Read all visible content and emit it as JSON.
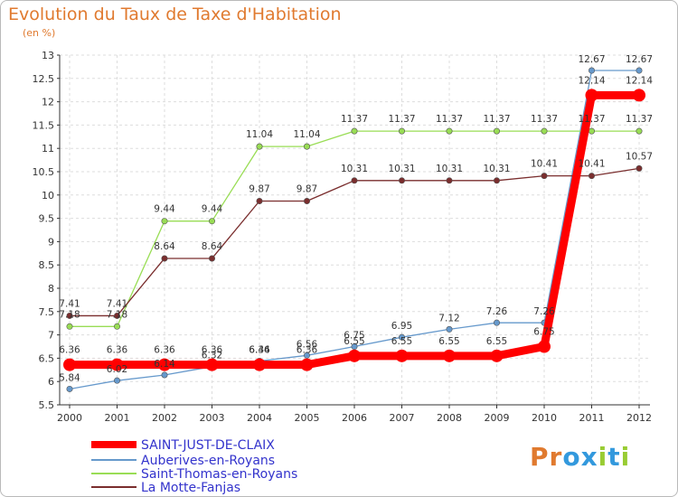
{
  "chart_data": {
    "type": "line",
    "title": "Evolution du Taux de Taxe d'Habitation",
    "subtitle": "(en %)",
    "xlabel": "",
    "ylabel": "",
    "x": [
      "2000",
      "2001",
      "2002",
      "2003",
      "2004",
      "2005",
      "2006",
      "2007",
      "2008",
      "2009",
      "2010",
      "2011",
      "2012"
    ],
    "ylim": [
      5.5,
      13
    ],
    "yticks": [
      "5.5",
      "6",
      "6.5",
      "7",
      "7.5",
      "8",
      "8.5",
      "9",
      "9.5",
      "10",
      "10.5",
      "11",
      "11.5",
      "12",
      "12.5",
      "13"
    ],
    "grid": true,
    "legend_position": "bottom-left",
    "series": [
      {
        "name": "SAINT-JUST-DE-CLAIX",
        "color": "#ff0000",
        "values": [
          6.36,
          6.36,
          6.36,
          6.36,
          6.36,
          6.36,
          6.55,
          6.55,
          6.55,
          6.55,
          6.75,
          12.14,
          12.14
        ],
        "labels": [
          "6.36",
          "6.36",
          "6.36",
          "6.36",
          "6.36",
          "6.36",
          "6.55",
          "6.55",
          "6.55",
          "6.55",
          "6.75",
          "12.14",
          "12.14"
        ]
      },
      {
        "name": "Auberives-en-Royans",
        "color": "#6699cc",
        "values": [
          5.84,
          6.02,
          6.14,
          6.32,
          6.44,
          6.56,
          6.75,
          6.95,
          7.12,
          7.26,
          7.26,
          12.67,
          12.67
        ],
        "labels": [
          "5.84",
          "6.02",
          "6.14",
          "6.32",
          "6.44",
          "6.56",
          "6.75",
          "6.95",
          "7.12",
          "7.26",
          "7.26",
          "12.67",
          "12.67"
        ]
      },
      {
        "name": "Saint-Thomas-en-Royans",
        "color": "#99dd55",
        "values": [
          7.18,
          7.18,
          9.44,
          9.44,
          11.04,
          11.04,
          11.37,
          11.37,
          11.37,
          11.37,
          11.37,
          11.37,
          11.37
        ],
        "labels": [
          "7.18",
          "7.18",
          "9.44",
          "9.44",
          "11.04",
          "11.04",
          "11.37",
          "11.37",
          "11.37",
          "11.37",
          "11.37",
          "11.37",
          "11.37"
        ]
      },
      {
        "name": "La Motte-Fanjas",
        "color": "#7a2e2e",
        "values": [
          7.41,
          7.41,
          8.64,
          8.64,
          9.87,
          9.87,
          10.31,
          10.31,
          10.31,
          10.31,
          10.41,
          10.41,
          10.57
        ],
        "labels": [
          "7.41",
          "7.41",
          "8.64",
          "8.64",
          "9.87",
          "9.87",
          "10.31",
          "10.31",
          "10.31",
          "10.31",
          "10.41",
          "10.41",
          "10.57"
        ]
      }
    ],
    "legend_text_color": "#3333cc"
  },
  "brand": {
    "letters": [
      "P",
      "r",
      "o",
      "x",
      "i",
      "t",
      "i"
    ],
    "colors": [
      "#e07a2f",
      "#e07a2f",
      "#3399dd",
      "#3399dd",
      "#99cc33",
      "#3399dd",
      "#99cc33"
    ]
  }
}
